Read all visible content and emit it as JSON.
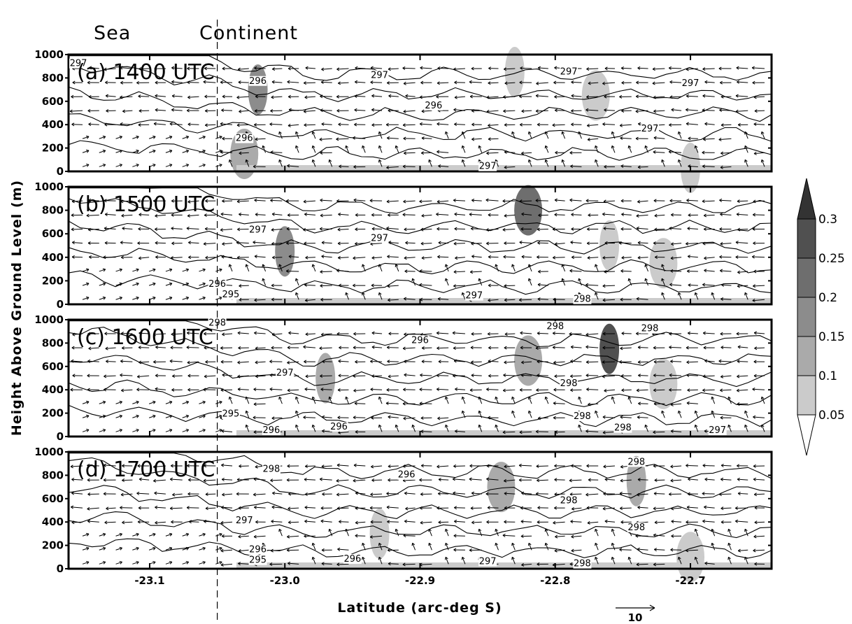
{
  "chart_data": {
    "type": "heatmap",
    "region_labels": {
      "left": "Sea",
      "right": "Continent"
    },
    "coastline_latitude": -23.05,
    "xlabel": "Latitude (arc-deg S)",
    "ylabel": "Height Above Ground Level (m)",
    "xlim": [
      -23.16,
      -22.64
    ],
    "xticks": [
      -23.1,
      -23.0,
      -22.9,
      -22.8,
      -22.7
    ],
    "xtick_labels": [
      "-23.1",
      "-23.0",
      "-22.9",
      "-22.8",
      "-22.7"
    ],
    "ylim": [
      0,
      1000
    ],
    "yticks": [
      0,
      200,
      400,
      600,
      800,
      1000
    ],
    "ytick_labels": [
      "0",
      "200",
      "400",
      "600",
      "800",
      "1000"
    ],
    "vector_reference": {
      "value": "10"
    },
    "colorbar": {
      "levels": [
        0.05,
        0.1,
        0.15,
        0.2,
        0.25,
        0.3
      ],
      "level_labels": [
        "0.05",
        "0.1",
        "0.15",
        "0.2",
        "0.25",
        "0.3"
      ],
      "colors": [
        "#ffffff",
        "#cbcbcb",
        "#aaaaaa",
        "#8c8c8c",
        "#6e6e6e",
        "#505050",
        "#333333"
      ]
    },
    "panels": [
      {
        "label": "(a) 1400 UTC",
        "contour_labels": [
          {
            "text": "297",
            "lat": -23.17,
            "height": 900
          },
          {
            "text": "296",
            "lat": -23.02,
            "height": 750
          },
          {
            "text": "297",
            "lat": -22.93,
            "height": 800
          },
          {
            "text": "297",
            "lat": -22.79,
            "height": 830
          },
          {
            "text": "297",
            "lat": -22.7,
            "height": 730
          },
          {
            "text": "296",
            "lat": -22.89,
            "height": 540
          },
          {
            "text": "296",
            "lat": -23.03,
            "height": 260
          },
          {
            "text": "297",
            "lat": -22.73,
            "height": 340
          },
          {
            "text": "297",
            "lat": -22.85,
            "height": 20
          }
        ],
        "shaded_regions": [
          {
            "lat": -23.02,
            "height": 700,
            "value": 0.2
          },
          {
            "lat": -23.03,
            "height": 150,
            "value": 0.15
          },
          {
            "lat": -22.83,
            "height": 850,
            "value": 0.1
          },
          {
            "lat": -22.77,
            "height": 650,
            "value": 0.1
          },
          {
            "lat": -22.7,
            "height": 30,
            "value": 0.1
          }
        ]
      },
      {
        "label": "(b) 1500 UTC",
        "contour_labels": [
          {
            "text": "297",
            "lat": -23.02,
            "height": 610
          },
          {
            "text": "297",
            "lat": -22.93,
            "height": 540
          },
          {
            "text": "296",
            "lat": -23.05,
            "height": 150
          },
          {
            "text": "295",
            "lat": -23.04,
            "height": 60
          },
          {
            "text": "297",
            "lat": -22.86,
            "height": 50
          },
          {
            "text": "298",
            "lat": -22.78,
            "height": 20
          }
        ],
        "shaded_regions": [
          {
            "lat": -23.0,
            "height": 450,
            "value": 0.2
          },
          {
            "lat": -22.82,
            "height": 800,
            "value": 0.25
          },
          {
            "lat": -22.76,
            "height": 500,
            "value": 0.1
          },
          {
            "lat": -22.72,
            "height": 350,
            "value": 0.1
          }
        ]
      },
      {
        "label": "(c) 1600 UTC",
        "contour_labels": [
          {
            "text": "298",
            "lat": -23.05,
            "height": 950
          },
          {
            "text": "297",
            "lat": -23.0,
            "height": 520
          },
          {
            "text": "296",
            "lat": -22.9,
            "height": 800
          },
          {
            "text": "298",
            "lat": -22.8,
            "height": 920
          },
          {
            "text": "298",
            "lat": -22.73,
            "height": 900
          },
          {
            "text": "298",
            "lat": -22.79,
            "height": 430
          },
          {
            "text": "298",
            "lat": -22.78,
            "height": 150
          },
          {
            "text": "295",
            "lat": -23.04,
            "height": 170
          },
          {
            "text": "296",
            "lat": -23.01,
            "height": 30
          },
          {
            "text": "296",
            "lat": -22.96,
            "height": 60
          },
          {
            "text": "298",
            "lat": -22.75,
            "height": 50
          },
          {
            "text": "297",
            "lat": -22.68,
            "height": 30
          }
        ],
        "shaded_regions": [
          {
            "lat": -22.97,
            "height": 500,
            "value": 0.15
          },
          {
            "lat": -22.82,
            "height": 650,
            "value": 0.15
          },
          {
            "lat": -22.76,
            "height": 750,
            "value": 0.3
          },
          {
            "lat": -22.72,
            "height": 450,
            "value": 0.1
          }
        ]
      },
      {
        "label": "(d) 1700 UTC",
        "contour_labels": [
          {
            "text": "298",
            "lat": -23.01,
            "height": 830
          },
          {
            "text": "296",
            "lat": -22.91,
            "height": 780
          },
          {
            "text": "298",
            "lat": -22.79,
            "height": 560
          },
          {
            "text": "298",
            "lat": -22.74,
            "height": 890
          },
          {
            "text": "297",
            "lat": -23.03,
            "height": 390
          },
          {
            "text": "298",
            "lat": -22.74,
            "height": 330
          },
          {
            "text": "296",
            "lat": -23.02,
            "height": 140
          },
          {
            "text": "295",
            "lat": -23.02,
            "height": 50
          },
          {
            "text": "296",
            "lat": -22.95,
            "height": 60
          },
          {
            "text": "297",
            "lat": -22.85,
            "height": 40
          },
          {
            "text": "298",
            "lat": -22.78,
            "height": 20
          }
        ],
        "shaded_regions": [
          {
            "lat": -22.93,
            "height": 300,
            "value": 0.1
          },
          {
            "lat": -22.84,
            "height": 700,
            "value": 0.15
          },
          {
            "lat": -22.74,
            "height": 750,
            "value": 0.15
          },
          {
            "lat": -22.7,
            "height": 100,
            "value": 0.1
          }
        ]
      }
    ]
  }
}
